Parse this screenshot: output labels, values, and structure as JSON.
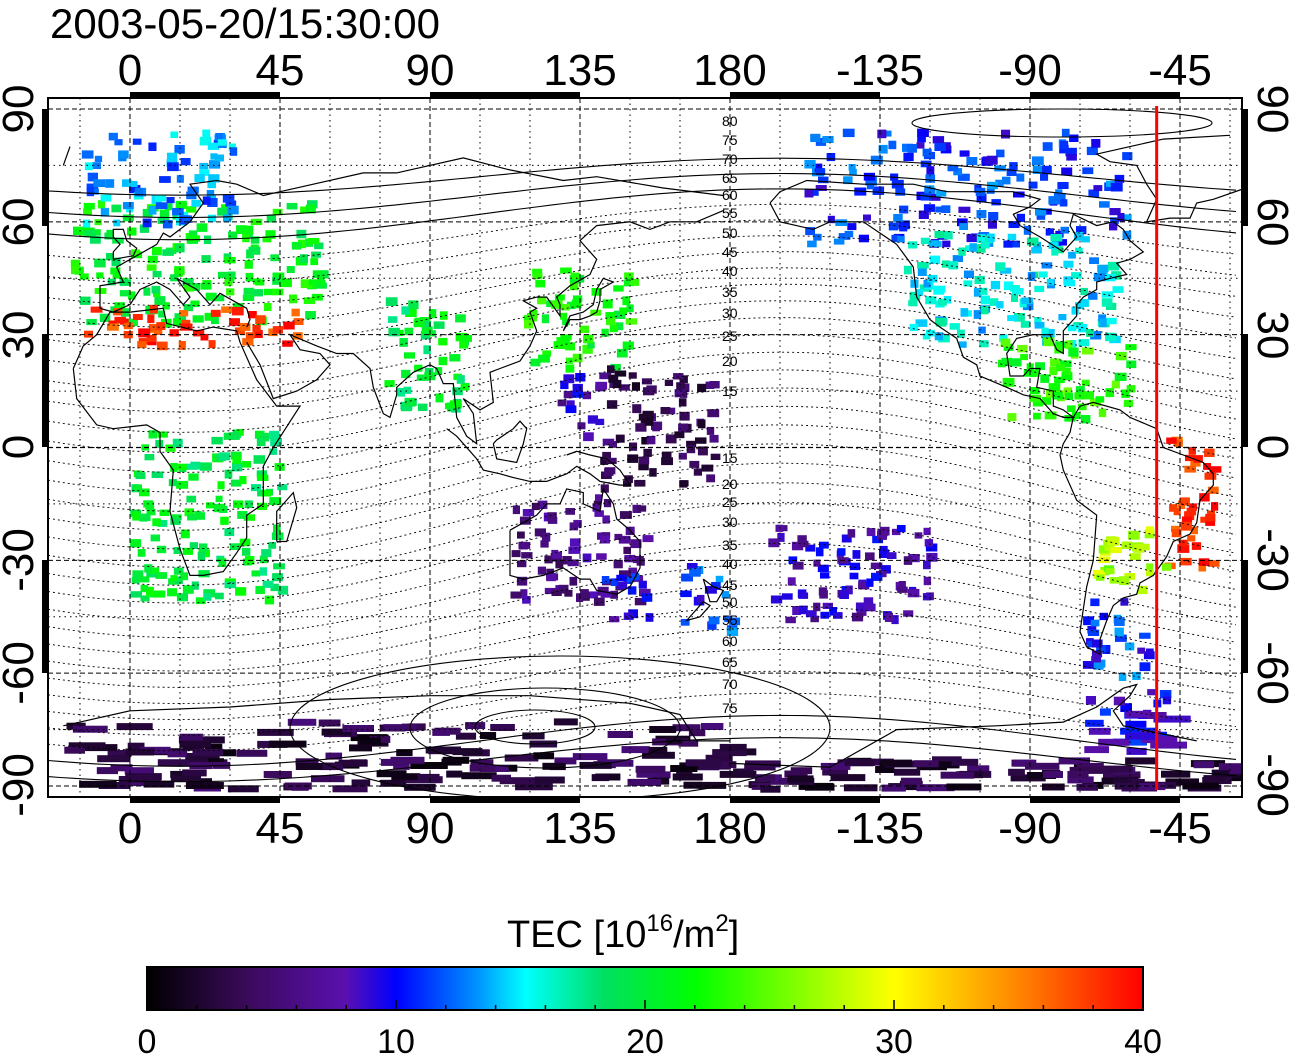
{
  "title": "2003-05-20/15:30:00",
  "map": {
    "top_lon_labels": [
      "0",
      "45",
      "90",
      "135",
      "180",
      "-135",
      "-90",
      "-45"
    ],
    "bottom_lon_labels": [
      "0",
      "45",
      "90",
      "135",
      "180",
      "-135",
      "-90",
      "-45"
    ],
    "left_lat_labels": [
      "90",
      "60",
      "30",
      "0",
      "-30",
      "-60",
      "-90"
    ],
    "right_lat_labels": [
      "90",
      "60",
      "30",
      "0",
      "-30",
      "-60",
      "-90"
    ],
    "mlat_north_labels": [
      "80",
      "75",
      "70",
      "65",
      "60",
      "55",
      "50",
      "45",
      "40",
      "35",
      "30",
      "25",
      "20",
      "15"
    ],
    "mlat_south_labels": [
      "15",
      "20",
      "25",
      "30",
      "35",
      "40",
      "45",
      "50",
      "55",
      "60",
      "65",
      "70",
      "75"
    ],
    "terminator_longitude": -52,
    "terminator_color": "#ff0000",
    "lat_range": [
      -90,
      90
    ],
    "grid": true
  },
  "colorbar": {
    "title_main": "TEC  [10",
    "title_exp1": "16",
    "title_mid": "/m",
    "title_exp2": "2",
    "title_end": "]",
    "tick_labels": [
      "0",
      "10",
      "20",
      "30",
      "40"
    ],
    "range": [
      0,
      40
    ],
    "stops": [
      "#000000",
      "#3a0a5a",
      "#5a10b0",
      "#0000ff",
      "#0090ff",
      "#00ffff",
      "#00e060",
      "#00ff00",
      "#ffff00",
      "#ff8000",
      "#ff0000"
    ]
  },
  "chart_data": {
    "type": "heatmap",
    "title": "2003-05-20/15:30:00",
    "value_label": "TEC  [10^16/m^2]",
    "value_range": [
      0,
      40
    ],
    "regions": [
      {
        "lon": [
          -18,
          58
        ],
        "lat": [
          34,
          66
        ],
        "tec": 21
      },
      {
        "lon": [
          -18,
          50
        ],
        "lat": [
          28,
          38
        ],
        "tec": 38
      },
      {
        "lon": [
          -15,
          30
        ],
        "lat": [
          60,
          85
        ],
        "tec": 13
      },
      {
        "lon": [
          118,
          150
        ],
        "lat": [
          22,
          48
        ],
        "tec": 22
      },
      {
        "lon": [
          126,
          140
        ],
        "lat": [
          4,
          20
        ],
        "tec": 8
      },
      {
        "lon": [
          140,
          175
        ],
        "lat": [
          -10,
          22
        ],
        "tec": 4
      },
      {
        "lon": [
          113,
          154
        ],
        "lat": [
          -40,
          -12
        ],
        "tec": 6
      },
      {
        "lon": [
          140,
          155
        ],
        "lat": [
          -45,
          -32
        ],
        "tec": 10
      },
      {
        "lon": [
          165,
          180
        ],
        "lat": [
          -48,
          -30
        ],
        "tec": 11
      },
      {
        "lon": [
          -170,
          -120
        ],
        "lat": [
          -45,
          -20
        ],
        "tec": 8
      },
      {
        "lon": [
          -160,
          -60
        ],
        "lat": [
          55,
          85
        ],
        "tec": 11
      },
      {
        "lon": [
          -130,
          -65
        ],
        "lat": [
          28,
          58
        ],
        "tec": 15
      },
      {
        "lon": [
          -100,
          -60
        ],
        "lat": [
          8,
          30
        ],
        "tec": 23
      },
      {
        "lon": [
          -50,
          -35
        ],
        "lat": [
          -32,
          5
        ],
        "tec": 38
      },
      {
        "lon": [
          -72,
          -50
        ],
        "lat": [
          -38,
          -20
        ],
        "tec": 27
      },
      {
        "lon": [
          -75,
          -55
        ],
        "lat": [
          -60,
          -40
        ],
        "tec": 11
      },
      {
        "lon": [
          -75,
          -50
        ],
        "lat": [
          -80,
          -64
        ],
        "tec": 9
      },
      {
        "lon": [
          -20,
          180
        ],
        "lat": [
          -90,
          -72
        ],
        "tec": 3
      },
      {
        "lon": [
          -180,
          -30
        ],
        "lat": [
          -90,
          -82
        ],
        "tec": 3
      },
      {
        "lon": [
          0,
          45
        ],
        "lat": [
          -40,
          5
        ],
        "tec": 20
      },
      {
        "lon": [
          75,
          100
        ],
        "lat": [
          10,
          40
        ],
        "tec": 20
      }
    ]
  }
}
